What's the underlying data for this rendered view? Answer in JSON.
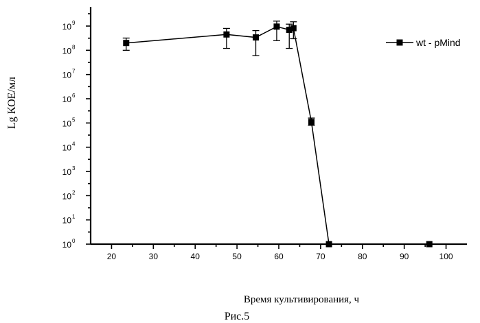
{
  "chart_data": {
    "type": "line",
    "ylabel": "Lg КОЕ/мл",
    "xlabel": "Время культивирования, ч",
    "caption": "Рис.5",
    "y_scale": "log",
    "xlim": [
      15,
      105
    ],
    "ylim": [
      1,
      1000000000
    ],
    "x_ticks": [
      20,
      30,
      40,
      50,
      60,
      70,
      80,
      90,
      100
    ],
    "y_ticks": [
      {
        "base": "10",
        "exp": "0",
        "value": 1
      },
      {
        "base": "10",
        "exp": "1",
        "value": 10
      },
      {
        "base": "10",
        "exp": "2",
        "value": 100
      },
      {
        "base": "10",
        "exp": "3",
        "value": 1000
      },
      {
        "base": "10",
        "exp": "4",
        "value": 10000
      },
      {
        "base": "10",
        "exp": "5",
        "value": 100000
      },
      {
        "base": "10",
        "exp": "6",
        "value": 1000000
      },
      {
        "base": "10",
        "exp": "7",
        "value": 10000000
      },
      {
        "base": "10",
        "exp": "8",
        "value": 100000000
      },
      {
        "base": "10",
        "exp": "9",
        "value": 1000000000
      }
    ],
    "legend_position": "top-right",
    "series": [
      {
        "name": "wt - pMind",
        "color": "#000000",
        "marker": "square",
        "points": [
          {
            "x": 23.5,
            "y": 200000000,
            "err_low": 100000000,
            "err_high": 320000000
          },
          {
            "x": 47.5,
            "y": 450000000,
            "err_low": 120000000,
            "err_high": 800000000
          },
          {
            "x": 54.5,
            "y": 340000000,
            "err_low": 60000000,
            "err_high": 650000000
          },
          {
            "x": 59.5,
            "y": 950000000,
            "err_low": 250000000,
            "err_high": 1600000000
          },
          {
            "x": 62.5,
            "y": 700000000,
            "err_low": 120000000,
            "err_high": 1200000000
          },
          {
            "x": 63.5,
            "y": 820000000,
            "err_low": 300000000,
            "err_high": 1500000000
          },
          {
            "x": 67.8,
            "y": 110000,
            "err_low": 80000,
            "err_high": 160000
          },
          {
            "x": 72.0,
            "y": 1
          },
          {
            "x": 96.0,
            "y": 1
          }
        ]
      }
    ]
  }
}
